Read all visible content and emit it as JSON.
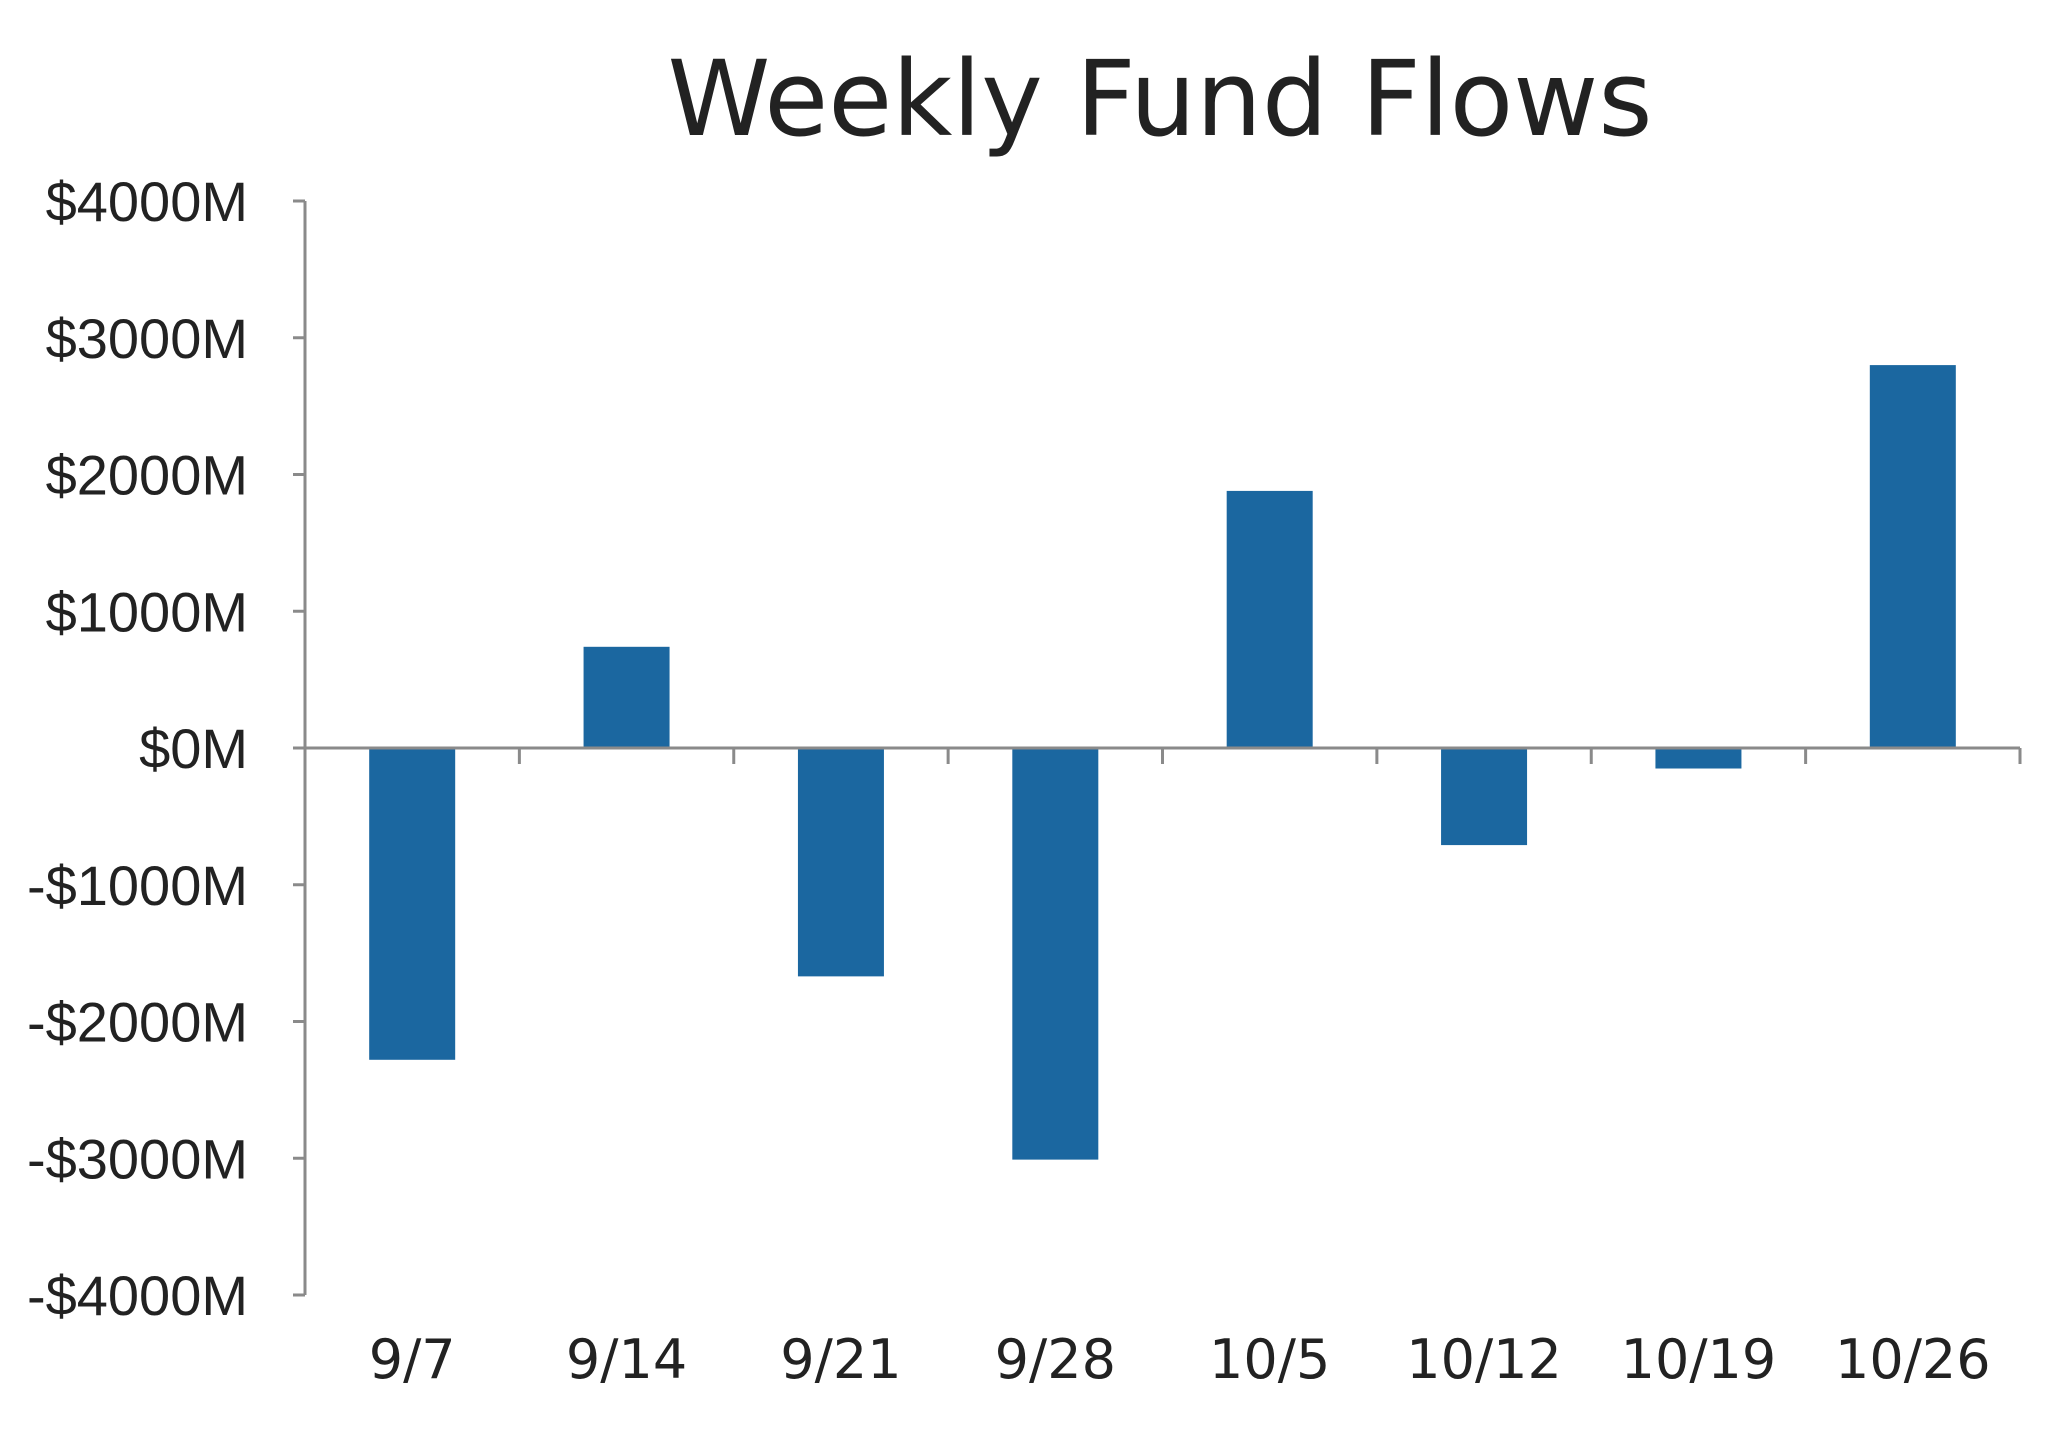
{
  "chart_data": {
    "type": "bar",
    "title": "Weekly Fund Flows",
    "categories": [
      "9/7",
      "9/14",
      "9/21",
      "9/28",
      "10/5",
      "10/12",
      "10/19",
      "10/26"
    ],
    "values": [
      -2280,
      740,
      -1670,
      -3010,
      1880,
      -710,
      -150,
      2800
    ],
    "ylim": [
      -4000,
      4000
    ],
    "yticks": [
      {
        "value": 4000,
        "label": "$4000M"
      },
      {
        "value": 3000,
        "label": "$3000M"
      },
      {
        "value": 2000,
        "label": "$2000M"
      },
      {
        "value": 1000,
        "label": "$1000M"
      },
      {
        "value": 0,
        "label": "$0M"
      },
      {
        "value": -1000,
        "label": "-$1000M"
      },
      {
        "value": -2000,
        "label": "-$2000M"
      },
      {
        "value": -3000,
        "label": "-$3000M"
      },
      {
        "value": -4000,
        "label": "-$4000M"
      }
    ],
    "bar_color": "#1b67a0",
    "grid": false,
    "legend": "none"
  }
}
